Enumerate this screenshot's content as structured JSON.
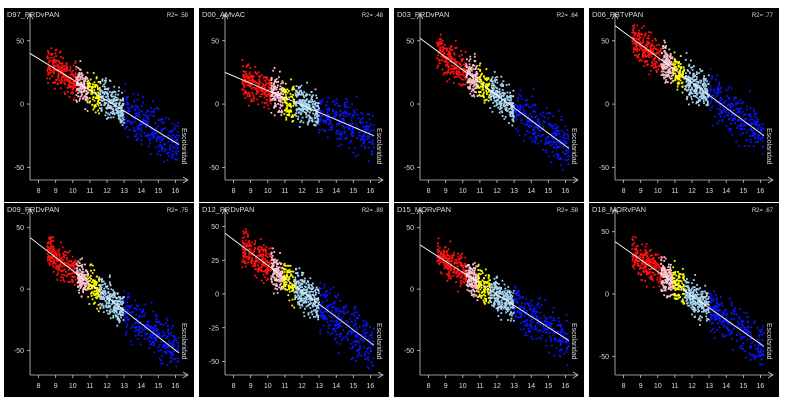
{
  "colors": {
    "background": "#000000",
    "axis": "#c8c8c8",
    "trend": "#ffffff",
    "bands": [
      "#ff1010",
      "#ffc0cb",
      "#ffff00",
      "#a8d4f0",
      "#0a14ff"
    ]
  },
  "chart_data": [
    {
      "type": "scatter",
      "title": "D97_PRDvPAN",
      "r2_label": "R2= .58",
      "xlabel": "Escolaridad",
      "ylabel": "",
      "xlim": [
        7.5,
        16.5
      ],
      "ylim": [
        -60,
        68
      ],
      "xticks": [
        8,
        9,
        10,
        11,
        12,
        13,
        14,
        15,
        16
      ],
      "yticks": [
        50,
        0,
        -50
      ],
      "trend": {
        "x": [
          7.5,
          16.2
        ],
        "y": [
          40,
          -32
        ]
      }
    },
    {
      "type": "scatter",
      "title": "D00_AMvAC",
      "r2_label": "R2= .48",
      "xlabel": "Escolaridad",
      "ylabel": "",
      "xlim": [
        7.5,
        16.5
      ],
      "ylim": [
        -60,
        68
      ],
      "xticks": [
        8,
        9,
        10,
        11,
        12,
        13,
        14,
        15,
        16
      ],
      "yticks": [
        50,
        0,
        -50
      ],
      "trend": {
        "x": [
          7.5,
          16.2
        ],
        "y": [
          25,
          -25
        ]
      }
    },
    {
      "type": "scatter",
      "title": "D03_PRDvPAN",
      "r2_label": "R2= .64",
      "xlabel": "Escolaridad",
      "ylabel": "",
      "xlim": [
        7.5,
        16.5
      ],
      "ylim": [
        -60,
        68
      ],
      "xticks": [
        8,
        9,
        10,
        11,
        12,
        13,
        14,
        15,
        16
      ],
      "yticks": [
        50,
        0,
        -50
      ],
      "trend": {
        "x": [
          7.5,
          16.2
        ],
        "y": [
          52,
          -35
        ]
      }
    },
    {
      "type": "scatter",
      "title": "D06_PBTvPAN",
      "r2_label": "R2= .77",
      "xlabel": "Escolaridad",
      "ylabel": "",
      "xlim": [
        7.5,
        16.5
      ],
      "ylim": [
        -60,
        68
      ],
      "xticks": [
        8,
        9,
        10,
        11,
        12,
        13,
        14,
        15,
        16
      ],
      "yticks": [
        50,
        0,
        -50
      ],
      "trend": {
        "x": [
          7.5,
          16.2
        ],
        "y": [
          62,
          -25
        ]
      }
    },
    {
      "type": "scatter",
      "title": "D09_PRDvPAN",
      "r2_label": "R2= .75",
      "xlabel": "Escolaridad",
      "ylabel": "",
      "xlim": [
        7.5,
        16.5
      ],
      "ylim": [
        -70,
        62
      ],
      "xticks": [
        8,
        9,
        10,
        11,
        12,
        13,
        14,
        15,
        16
      ],
      "yticks": [
        50,
        0,
        -50
      ],
      "trend": {
        "x": [
          7.5,
          16.2
        ],
        "y": [
          42,
          -52
        ]
      }
    },
    {
      "type": "scatter",
      "title": "D12_PRDvPAN",
      "r2_label": "R2= .89",
      "xlabel": "Escolaridad",
      "ylabel": "",
      "xlim": [
        7.5,
        16.5
      ],
      "ylim": [
        -60,
        60
      ],
      "xticks": [
        8,
        9,
        10,
        11,
        12,
        13,
        14,
        15,
        16
      ],
      "yticks": [
        50,
        25,
        0,
        -25,
        -50
      ],
      "trend": {
        "x": [
          7.5,
          16.2
        ],
        "y": [
          45,
          -38
        ]
      }
    },
    {
      "type": "scatter",
      "title": "D15_MORvPAN",
      "r2_label": "R2= .58",
      "xlabel": "Escolaridad",
      "ylabel": "",
      "xlim": [
        7.5,
        16.5
      ],
      "ylim": [
        -70,
        62
      ],
      "xticks": [
        8,
        9,
        10,
        11,
        12,
        13,
        14,
        15,
        16
      ],
      "yticks": [
        50,
        0,
        -50
      ],
      "trend": {
        "x": [
          7.5,
          16.2
        ],
        "y": [
          36,
          -42
        ]
      }
    },
    {
      "type": "scatter",
      "title": "D18_MORvPAN",
      "r2_label": "R2= .67",
      "xlabel": "Escolaridad",
      "ylabel": "",
      "xlim": [
        7.5,
        16.5
      ],
      "ylim": [
        -65,
        65
      ],
      "xticks": [
        8,
        9,
        10,
        11,
        12,
        13,
        14,
        15,
        16
      ],
      "yticks": [
        50,
        0,
        -50
      ],
      "trend": {
        "x": [
          7.5,
          16.2
        ],
        "y": [
          42,
          -42
        ]
      }
    }
  ]
}
